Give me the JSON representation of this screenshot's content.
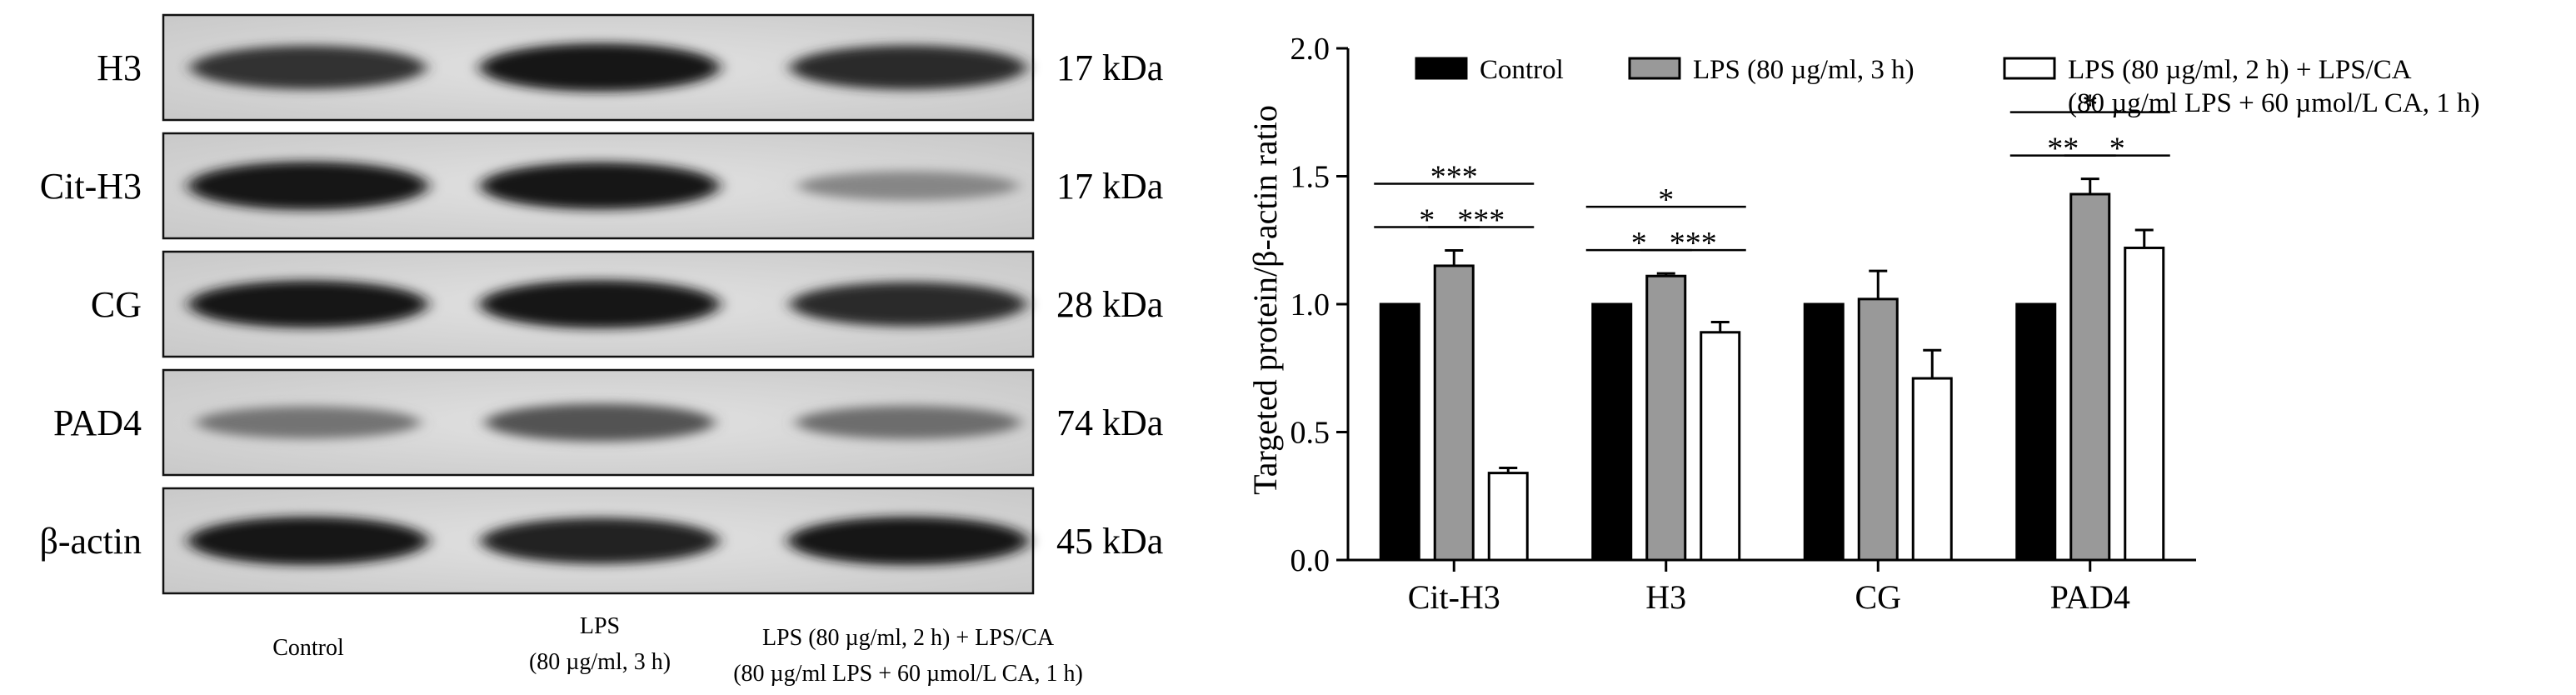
{
  "blot": {
    "bands": [
      {
        "name": "H3",
        "mw": "17 kDa"
      },
      {
        "name": "Cit-H3",
        "mw": "17 kDa"
      },
      {
        "name": "CG",
        "mw": "28 kDa"
      },
      {
        "name": "PAD4",
        "mw": "74 kDa"
      },
      {
        "name": "β-actin",
        "mw": "45 kDa"
      }
    ],
    "lanes": [
      {
        "lines": [
          "Control"
        ]
      },
      {
        "lines": [
          "LPS",
          "(80 µg/ml, 3 h)"
        ]
      },
      {
        "lines": [
          "LPS (80 µg/ml, 2 h) + LPS/CA",
          "(80 µg/ml LPS + 60 µmol/L CA, 1 h)"
        ]
      }
    ],
    "intensity": [
      [
        0.8,
        0.95,
        0.82
      ],
      [
        0.95,
        0.92,
        0.35
      ],
      [
        0.92,
        0.95,
        0.82
      ],
      [
        0.45,
        0.62,
        0.48
      ],
      [
        0.95,
        0.88,
        0.95
      ]
    ]
  },
  "chart_data": {
    "type": "bar",
    "title": "",
    "xlabel": "",
    "ylabel": "Targeted protein/β-actin ratio",
    "ylim": [
      0,
      2.0
    ],
    "yticks": [
      "0.0",
      "0.5",
      "1.0",
      "1.5",
      "2.0"
    ],
    "categories": [
      "Cit-H3",
      "H3",
      "CG",
      "PAD4"
    ],
    "legend_position": "top",
    "series": [
      {
        "name": "Control",
        "color": "#000000",
        "values": [
          1.0,
          1.0,
          1.0,
          1.0
        ],
        "errors": [
          0,
          0,
          0,
          0
        ]
      },
      {
        "name": "LPS (80 µg/ml, 3 h)",
        "color": "#999999",
        "values": [
          1.15,
          1.11,
          1.02,
          1.43
        ],
        "errors": [
          0.06,
          0.01,
          0.11,
          0.06
        ]
      },
      {
        "name": "LPS (80 µg/ml, 2 h) + LPS/CA",
        "name_line2": "(80 µg/ml LPS + 60 µmol/L CA, 1 h)",
        "color": "#ffffff",
        "values": [
          0.34,
          0.89,
          0.71,
          1.22
        ],
        "errors": [
          0.02,
          0.04,
          0.11,
          0.07
        ]
      }
    ],
    "significance": [
      {
        "category": 0,
        "from": 0,
        "to": 1,
        "label": "*",
        "level": 1
      },
      {
        "category": 0,
        "from": 1,
        "to": 2,
        "label": "***",
        "level": 1
      },
      {
        "category": 0,
        "from": 0,
        "to": 2,
        "label": "***",
        "level": 2
      },
      {
        "category": 1,
        "from": 0,
        "to": 1,
        "label": "*",
        "level": 1
      },
      {
        "category": 1,
        "from": 1,
        "to": 2,
        "label": "***",
        "level": 1
      },
      {
        "category": 1,
        "from": 0,
        "to": 2,
        "label": "*",
        "level": 2
      },
      {
        "category": 3,
        "from": 0,
        "to": 1,
        "label": "**",
        "level": 1
      },
      {
        "category": 3,
        "from": 1,
        "to": 2,
        "label": "*",
        "level": 1
      },
      {
        "category": 3,
        "from": 0,
        "to": 2,
        "label": "*",
        "level": 2
      }
    ]
  }
}
